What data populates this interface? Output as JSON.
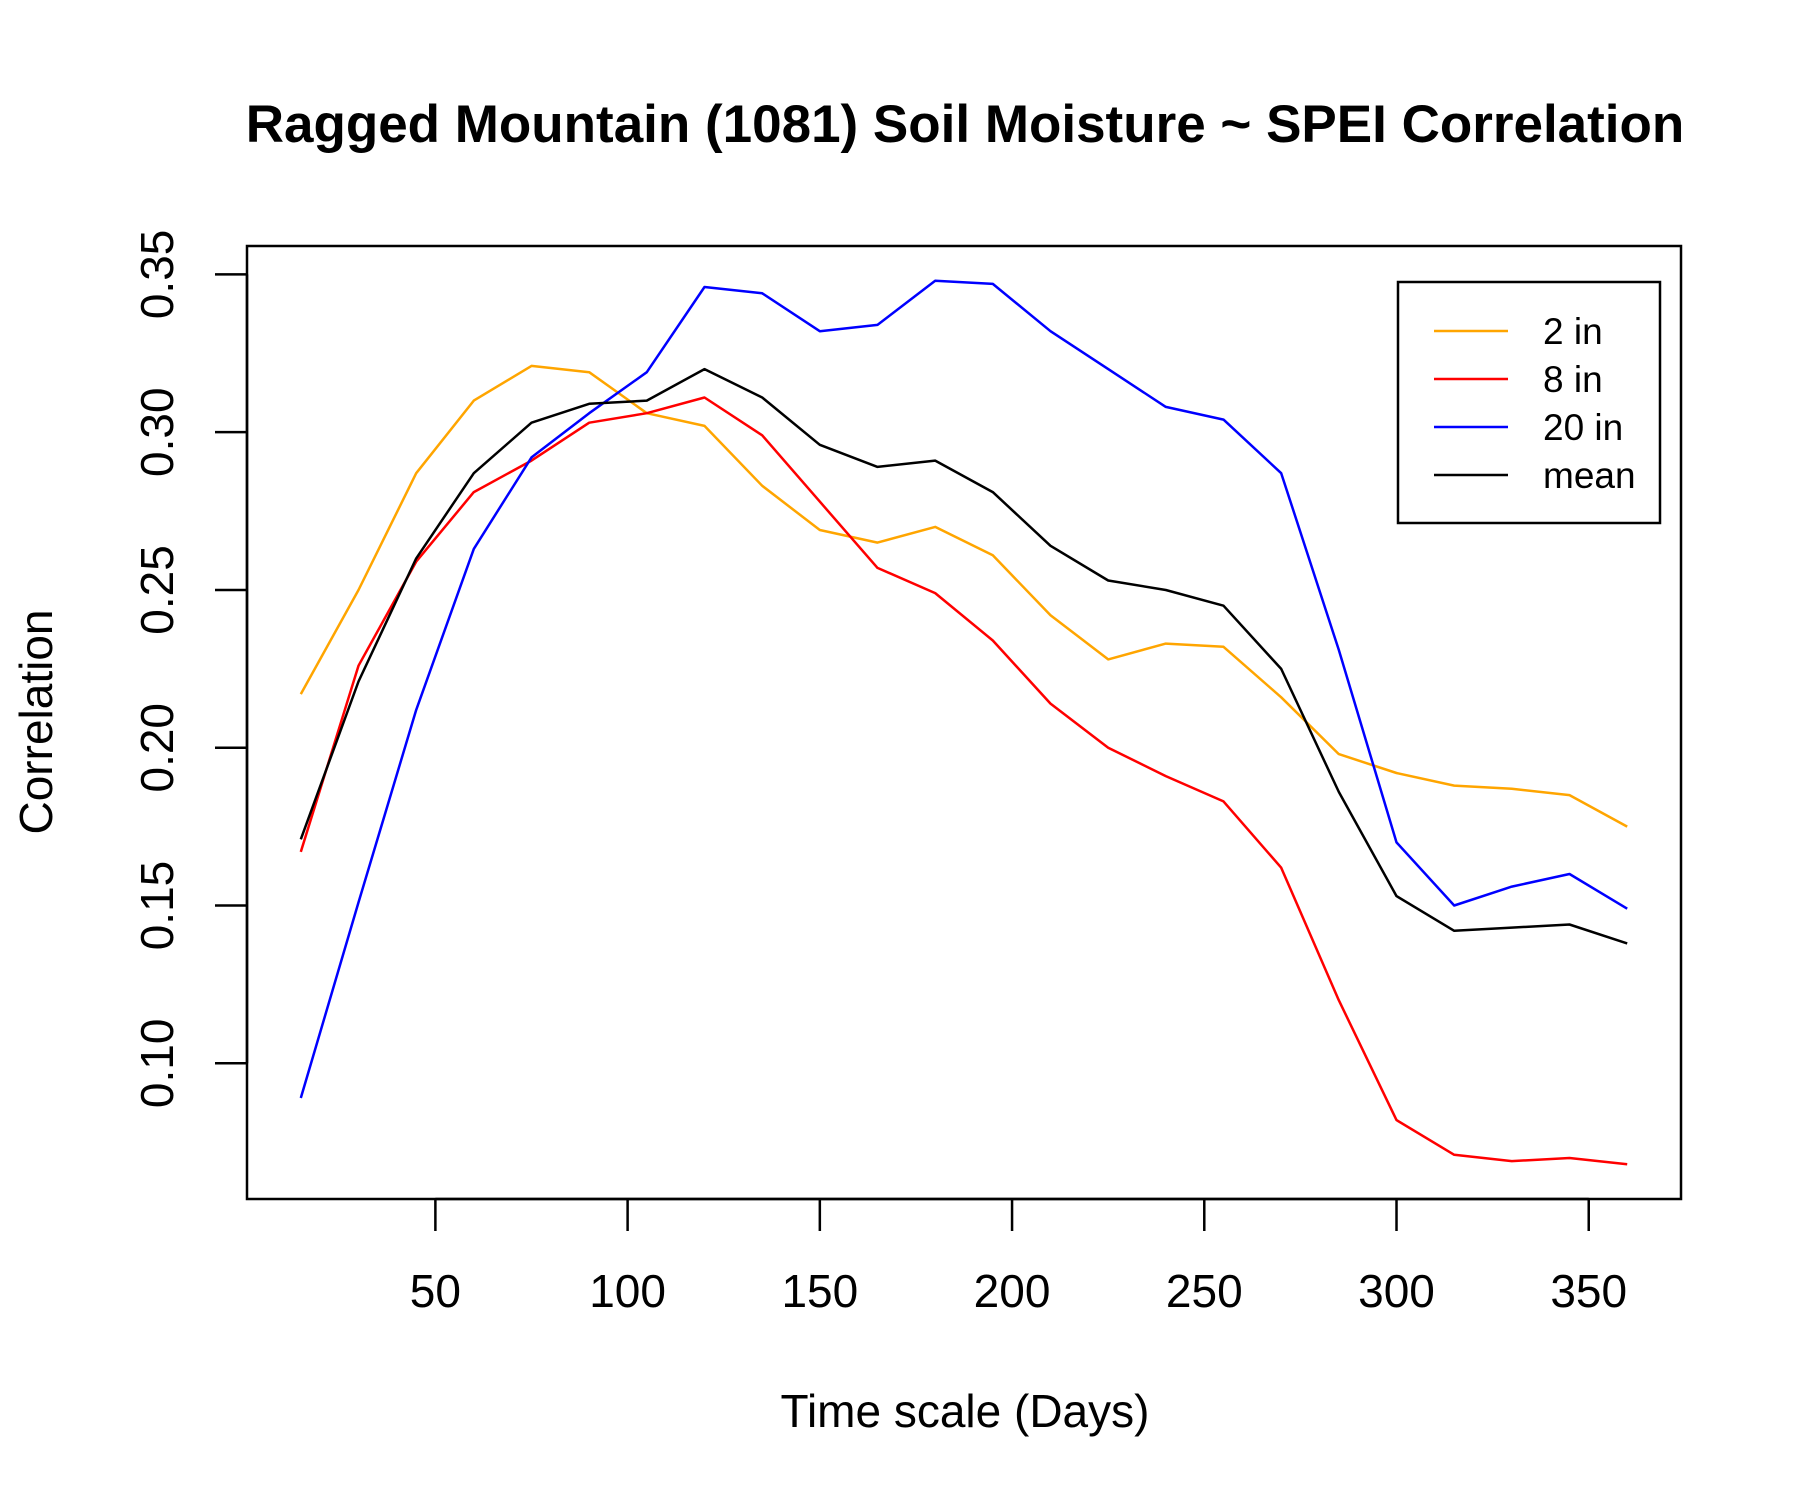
{
  "chart_data": {
    "type": "line",
    "title": "Ragged Mountain (1081) Soil Moisture ~ SPEI Correlation",
    "xlabel": "Time scale (Days)",
    "ylabel": "Correlation",
    "xlim": [
      1,
      374
    ],
    "ylim": [
      0.057,
      0.359
    ],
    "xticks": [
      50,
      100,
      150,
      200,
      250,
      300,
      350
    ],
    "xtick_labels": [
      "50",
      "100",
      "150",
      "200",
      "250",
      "300",
      "350"
    ],
    "yticks": [
      0.1,
      0.15,
      0.2,
      0.25,
      0.3,
      0.35
    ],
    "ytick_labels": [
      "0.10",
      "0.15",
      "0.20",
      "0.25",
      "0.30",
      "0.35"
    ],
    "grid": false,
    "legend_position": "top-right",
    "x": [
      15,
      30,
      45,
      60,
      75,
      90,
      105,
      120,
      135,
      150,
      165,
      180,
      195,
      210,
      225,
      240,
      255,
      270,
      285,
      300,
      315,
      330,
      345,
      360
    ],
    "series": [
      {
        "name": "2 in",
        "color": "#FFA500",
        "values": [
          0.217,
          0.25,
          0.287,
          0.31,
          0.321,
          0.319,
          0.306,
          0.302,
          0.283,
          0.269,
          0.265,
          0.27,
          0.261,
          0.242,
          0.228,
          0.233,
          0.232,
          0.216,
          0.198,
          0.192,
          0.188,
          0.187,
          0.185,
          0.175
        ]
      },
      {
        "name": "8 in",
        "color": "#FF0000",
        "values": [
          0.167,
          0.226,
          0.259,
          0.281,
          0.291,
          0.303,
          0.306,
          0.311,
          0.299,
          0.278,
          0.257,
          0.249,
          0.234,
          0.214,
          0.2,
          0.191,
          0.183,
          0.162,
          0.12,
          0.082,
          0.071,
          0.069,
          0.07,
          0.068
        ]
      },
      {
        "name": "20 in",
        "color": "#0000FF",
        "values": [
          0.089,
          0.151,
          0.212,
          0.263,
          0.292,
          0.306,
          0.319,
          0.346,
          0.344,
          0.332,
          0.334,
          0.348,
          0.347,
          0.332,
          0.32,
          0.308,
          0.304,
          0.287,
          0.231,
          0.17,
          0.15,
          0.156,
          0.16,
          0.149
        ]
      },
      {
        "name": "mean",
        "color": "#000000",
        "values": [
          0.171,
          0.221,
          0.26,
          0.287,
          0.303,
          0.309,
          0.31,
          0.32,
          0.311,
          0.296,
          0.289,
          0.291,
          0.281,
          0.264,
          0.253,
          0.25,
          0.245,
          0.225,
          0.186,
          0.153,
          0.142,
          0.143,
          0.144,
          0.138
        ]
      }
    ]
  }
}
